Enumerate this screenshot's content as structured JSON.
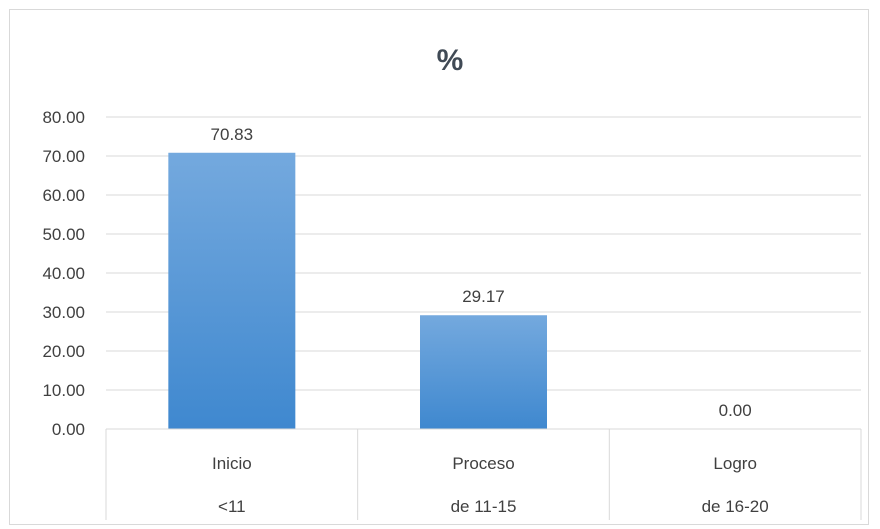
{
  "chart_data": {
    "type": "bar",
    "title": "%",
    "categories": [
      {
        "label": "Inicio",
        "sublabel": "<11"
      },
      {
        "label": "Proceso",
        "sublabel": "de 11-15"
      },
      {
        "label": "Logro",
        "sublabel": "de 16-20"
      }
    ],
    "values": [
      70.83,
      29.17,
      0.0
    ],
    "data_labels": [
      "70.83",
      "29.17",
      "0.00"
    ],
    "ylim": [
      0,
      80
    ],
    "yticks": [
      "0.00",
      "10.00",
      "20.00",
      "30.00",
      "40.00",
      "50.00",
      "60.00",
      "70.00",
      "80.00"
    ],
    "grid": true,
    "legend": "none",
    "colors": {
      "bar_top": "#74a9de",
      "bar_bottom": "#3f88cf",
      "grid": "#d9d9d9",
      "text": "#404040"
    }
  }
}
